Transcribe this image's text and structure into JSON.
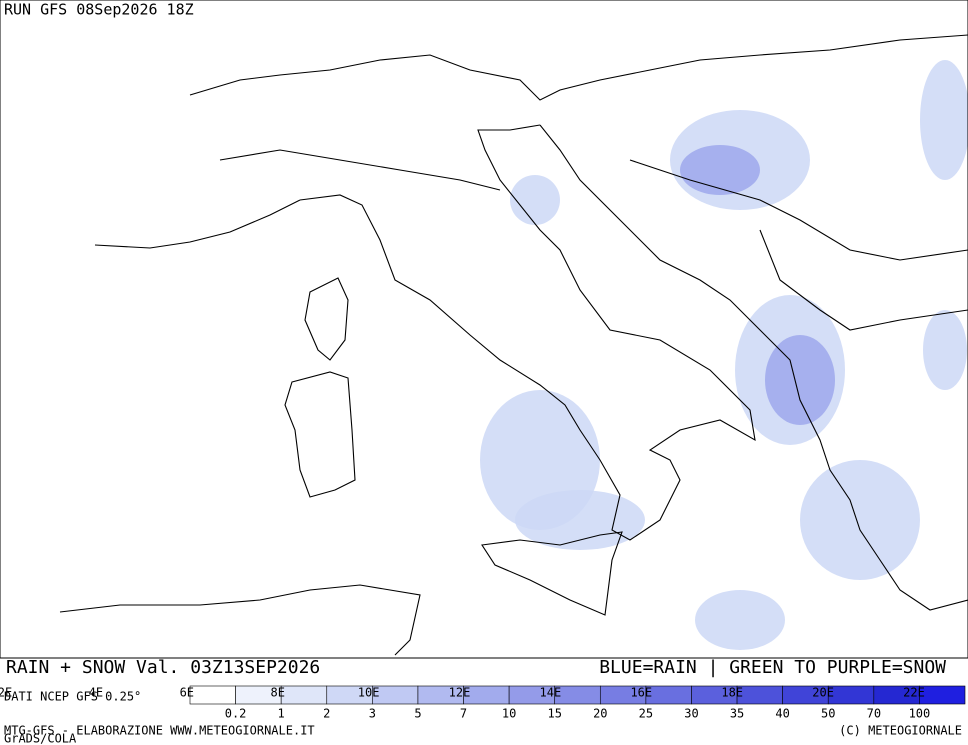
{
  "header": {
    "run": "RUN GFS 08Sep2026 18Z"
  },
  "footer": {
    "title": "RAIN + SNOW Val. 03Z13SEP2026",
    "legend_note": "BLUE=RAIN | GREEN TO PURPLE=SNOW",
    "source": "DATI NCEP GFS 0.25°",
    "credit": "MTG-GFS - ELABORAZIONE WWW.METEOGIORNALE.IT",
    "grads": "GrADS/COLA",
    "copyright": "(C) METEOGIORNALE"
  },
  "map": {
    "lon_labels": [
      "2E",
      "4E",
      "6E",
      "8E",
      "10E",
      "12E",
      "14E",
      "16E",
      "18E",
      "20E",
      "22E"
    ]
  },
  "legend": {
    "levels": [
      0.2,
      1,
      2,
      3,
      5,
      7,
      10,
      15,
      20,
      25,
      30,
      35,
      40,
      50,
      70,
      100
    ],
    "colors": [
      "#ffffff",
      "#eef2fc",
      "#dfe6f9",
      "#cfd8f6",
      "#c0c9f3",
      "#b1baf0",
      "#a2abed",
      "#949be9",
      "#858ce6",
      "#777de3",
      "#696fe0",
      "#5b60dd",
      "#4d52da",
      "#4044d8",
      "#3236d5",
      "#2528d2",
      "#1f1fe0"
    ]
  }
}
